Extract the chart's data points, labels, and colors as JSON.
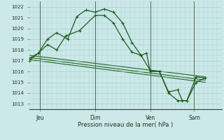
{
  "xlabel": "Pression niveau de la mer( hPa )",
  "background_color": "#cce8e8",
  "grid_color": "#99cccc",
  "line_color": "#1a5c1a",
  "yticks": [
    1013,
    1014,
    1015,
    1016,
    1017,
    1018,
    1019,
    1020,
    1021,
    1022
  ],
  "ylim": [
    1012.5,
    1022.5
  ],
  "xtick_labels": [
    "Jeu",
    "Dim",
    "Ven",
    "Sam"
  ],
  "xtick_positions": [
    12,
    72,
    132,
    180
  ],
  "xlim": [
    0,
    210
  ],
  "series1_x": [
    0,
    10,
    20,
    30,
    42,
    52,
    62,
    72,
    82,
    92,
    102,
    112,
    122,
    128,
    132,
    142,
    152,
    162,
    167,
    172,
    182,
    192
  ],
  "series1_y": [
    1017.0,
    1017.7,
    1019.0,
    1019.6,
    1019.0,
    1021.1,
    1021.7,
    1021.5,
    1021.8,
    1021.5,
    1020.5,
    1018.7,
    1017.5,
    1017.7,
    1016.0,
    1016.0,
    1014.1,
    1014.3,
    1013.3,
    1013.3,
    1015.5,
    1015.4
  ],
  "series2_x": [
    0,
    10,
    20,
    30,
    40,
    55,
    72,
    82,
    92,
    102,
    112,
    122,
    132,
    142,
    152,
    162,
    172,
    182,
    192
  ],
  "series2_y": [
    1017.2,
    1017.7,
    1018.5,
    1018.0,
    1019.3,
    1019.8,
    1021.2,
    1021.2,
    1020.5,
    1019.0,
    1017.8,
    1017.5,
    1016.1,
    1016.0,
    1014.0,
    1013.3,
    1013.3,
    1015.0,
    1015.4
  ],
  "trend1_x": [
    0,
    192
  ],
  "trend1_y": [
    1017.5,
    1015.5
  ],
  "trend2_x": [
    0,
    192
  ],
  "trend2_y": [
    1017.3,
    1015.2
  ],
  "trend3_x": [
    0,
    192
  ],
  "trend3_y": [
    1017.1,
    1015.0
  ],
  "vline_positions": [
    12,
    72,
    132,
    180
  ]
}
